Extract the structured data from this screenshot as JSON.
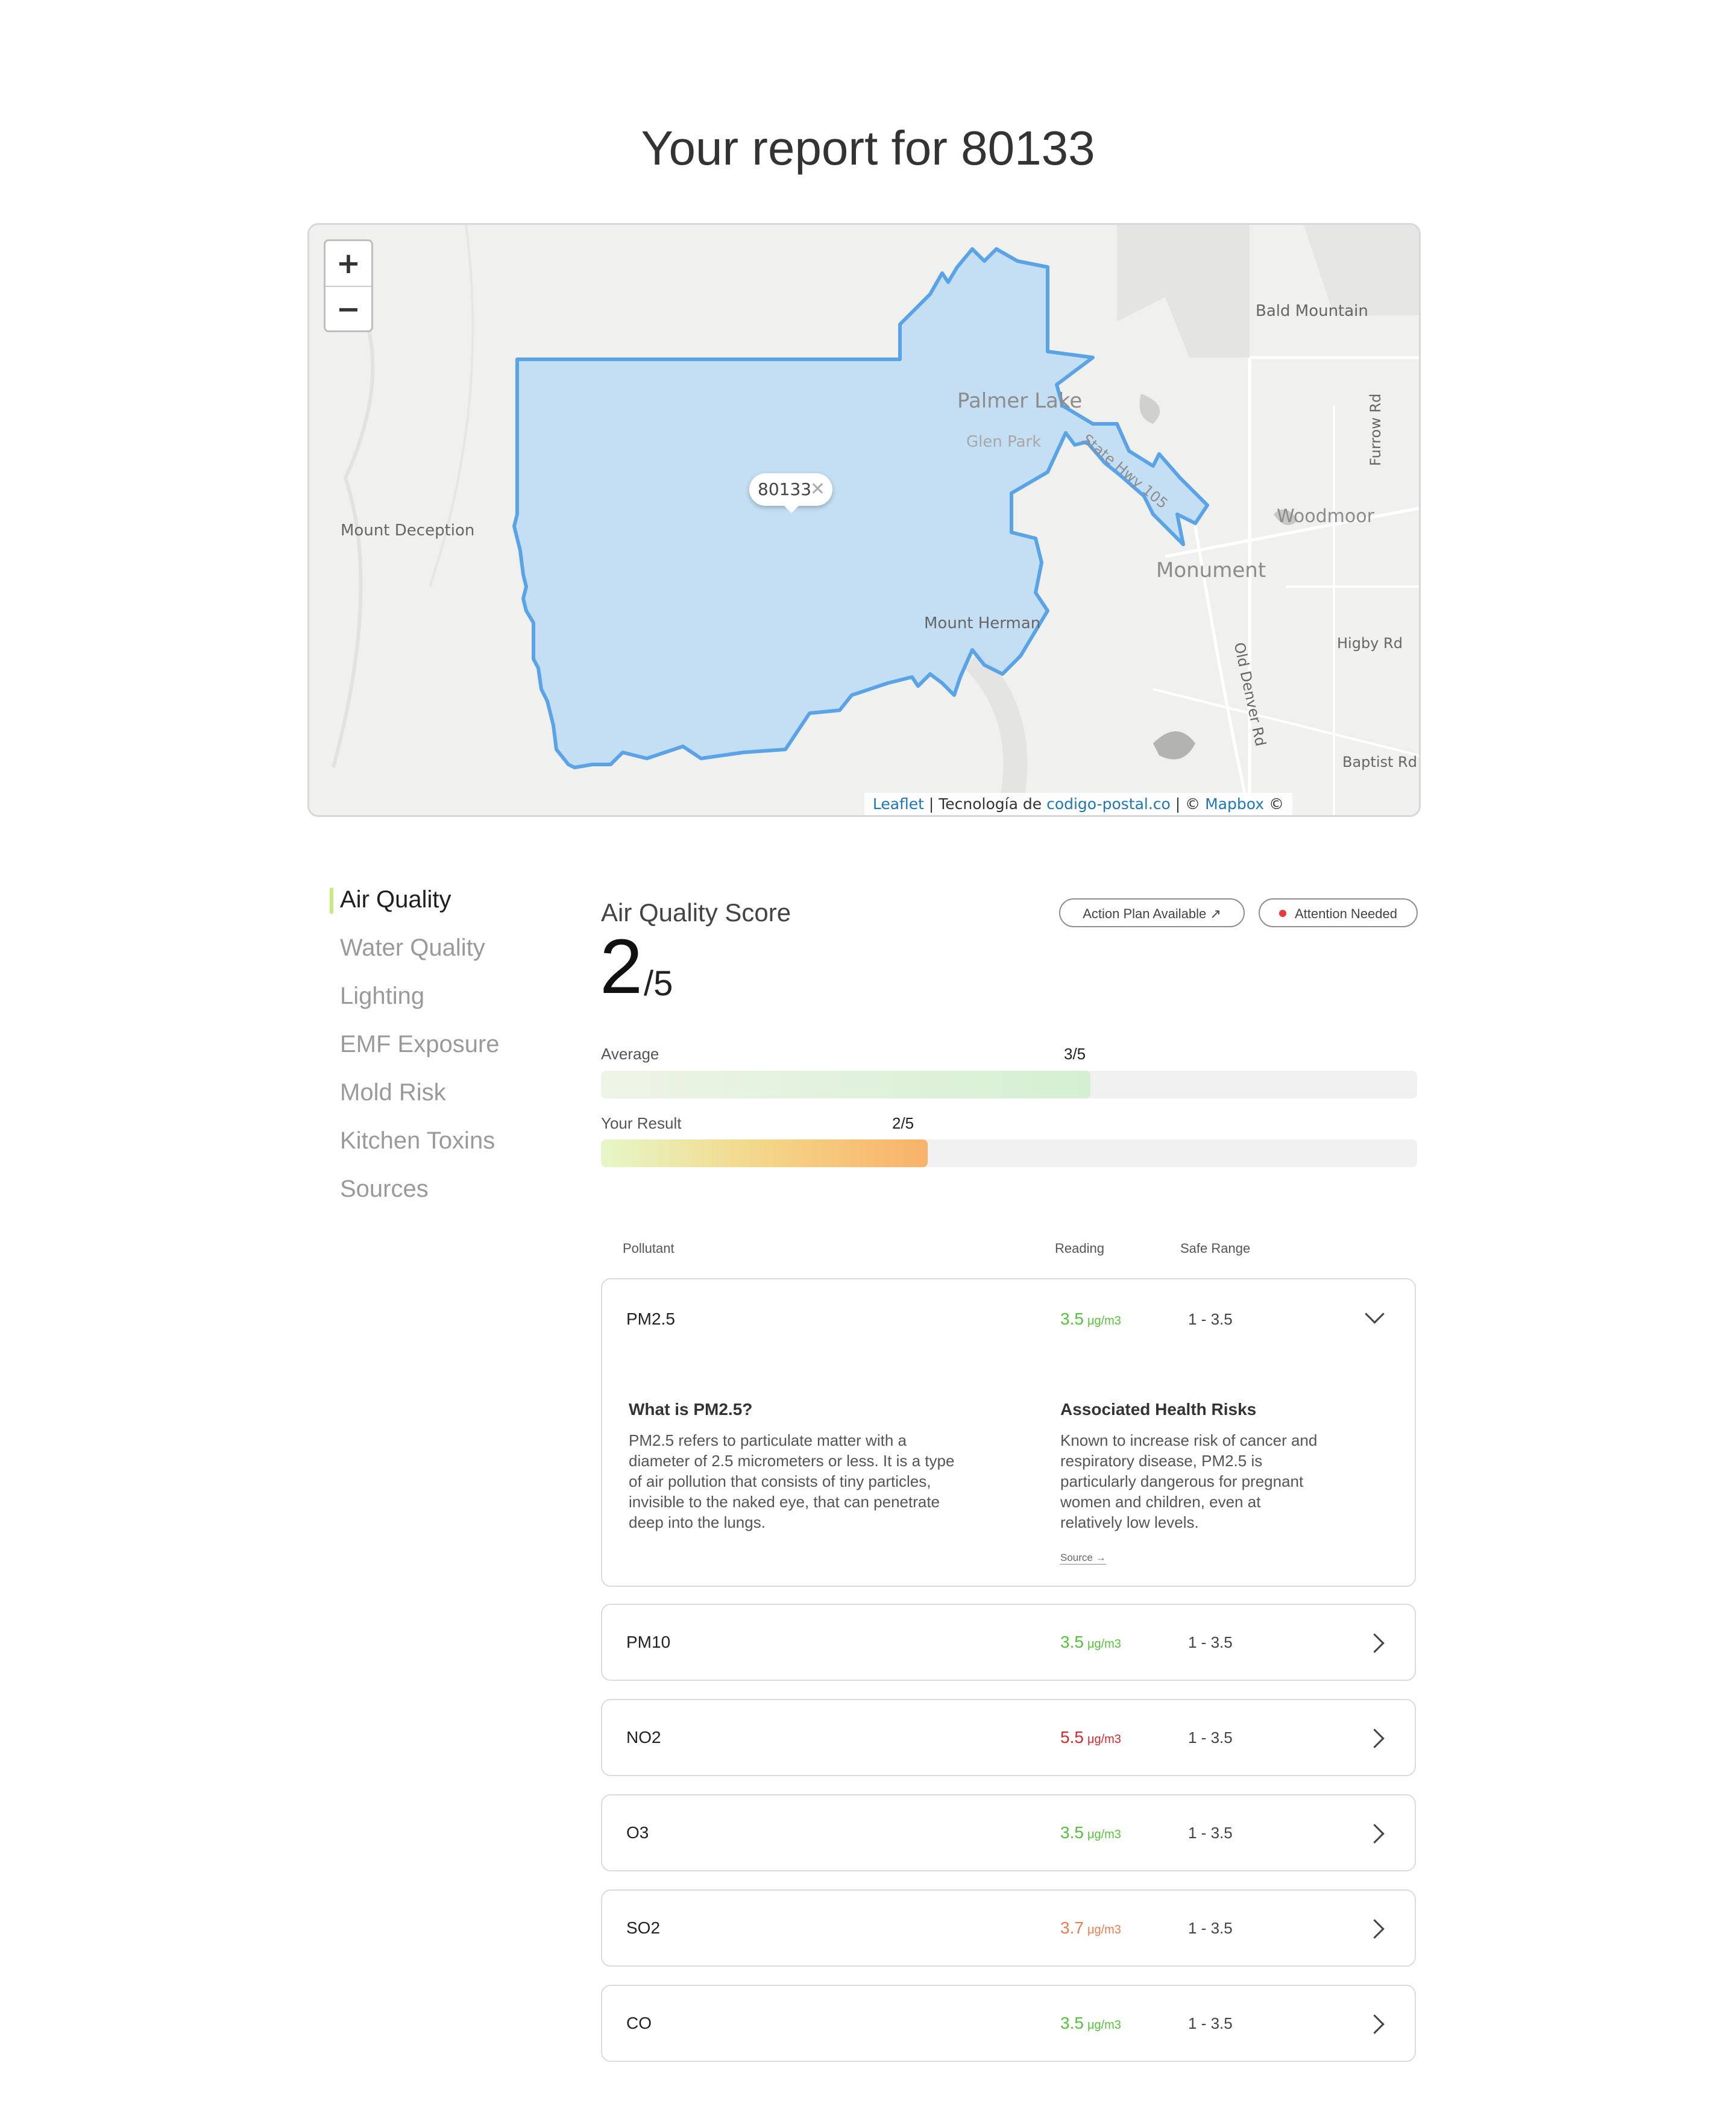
{
  "page": {
    "title": "Your report for 80133"
  },
  "map": {
    "zoom_in": "+",
    "zoom_out": "−",
    "popup_label": "80133",
    "popup_close": "✕",
    "labels": {
      "bald_mountain": "Bald Mountain",
      "palmer_lake": "Palmer Lake",
      "glen_park": "Glen Park",
      "hwy": "State Hwy 105",
      "mount_deception": "Mount Deception",
      "woodmoor": "Woodmoor",
      "monument": "Monument",
      "furrow_rd": "Furrow Rd",
      "mount_herman": "Mount Herman",
      "higby_rd": "Higby Rd",
      "old_denver_rd": "Old Denver Rd",
      "baptist_rd": "Baptist Rd"
    },
    "attribution": {
      "leaflet": "Leaflet",
      "sep1": " | Tecnología de ",
      "codigo": "codigo-postal.co",
      "sep2": " | © ",
      "mapbox": "Mapbox",
      "tail": " ©"
    },
    "colors": {
      "boundary": "#5aa3e6",
      "fill": "#bcdcf5"
    }
  },
  "sidebar": {
    "items": [
      {
        "label": "Air Quality",
        "active": true
      },
      {
        "label": "Water Quality"
      },
      {
        "label": "Lighting"
      },
      {
        "label": "EMF Exposure"
      },
      {
        "label": "Mold Risk"
      },
      {
        "label": "Kitchen Toxins"
      },
      {
        "label": "Sources"
      }
    ]
  },
  "score": {
    "label": "Air Quality Score",
    "value": "2",
    "out_of": "/5",
    "action_plan": "Action Plan Available ↗",
    "attention": "Attention Needed",
    "average": {
      "label": "Average",
      "value": "3/5",
      "fraction": 0.6
    },
    "result": {
      "label": "Your Result",
      "value": "2/5",
      "fraction": 0.4
    }
  },
  "table": {
    "headers": {
      "pollutant": "Pollutant",
      "reading": "Reading",
      "safe_range": "Safe Range"
    },
    "unit": "μg/m3",
    "rows": [
      {
        "name": "PM2.5",
        "reading": "3.5",
        "range": "1 - 3.5",
        "status": "green"
      },
      {
        "name": "PM10",
        "reading": "3.5",
        "range": "1 - 3.5",
        "status": "green"
      },
      {
        "name": "NO2",
        "reading": "5.5",
        "range": "1 - 3.5",
        "status": "red"
      },
      {
        "name": "O3",
        "reading": "3.5",
        "range": "1 - 3.5",
        "status": "green"
      },
      {
        "name": "SO2",
        "reading": "3.7",
        "range": "1 - 3.5",
        "status": "orange"
      },
      {
        "name": "CO",
        "reading": "3.5",
        "range": "1 - 3.5",
        "status": "green"
      }
    ],
    "detail": {
      "what_title": "What is PM2.5?",
      "what_lines": [
        "PM2.5 refers to particulate matter with a",
        "diameter of 2.5 micrometers or less. It is a type",
        "of air pollution that consists of tiny particles,",
        "invisible to the naked eye, that can penetrate",
        "deep into the lungs."
      ],
      "risk_title": "Associated Health Risks",
      "risk_lines": [
        "Known to increase risk of cancer and",
        "respiratory disease, PM2.5 is",
        "particularly dangerous for pregnant",
        "women and children, even at",
        "relatively low levels."
      ],
      "source": "Source →"
    }
  }
}
